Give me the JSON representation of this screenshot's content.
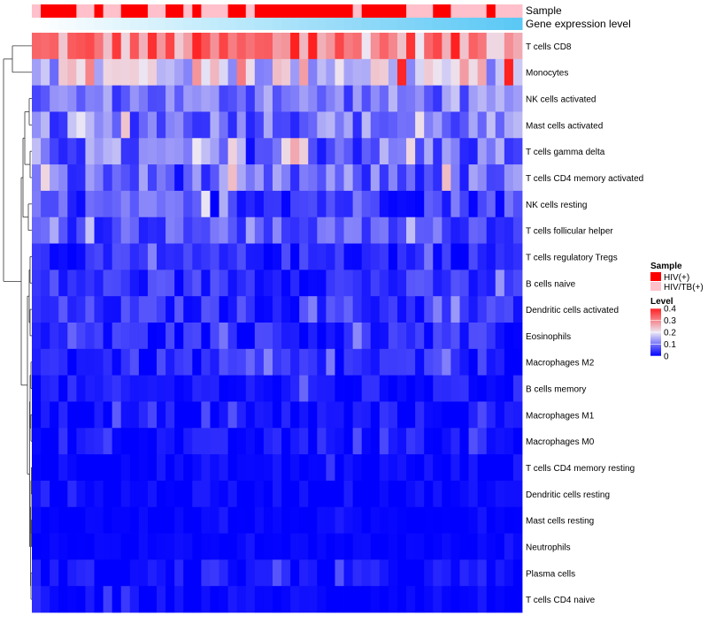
{
  "chart_data": {
    "type": "heatmap",
    "annotation_tracks": {
      "sample_label": "Sample",
      "gene_expression_label": "Gene expression level"
    },
    "sample_groups": [
      {
        "name": "HIV(+)",
        "color": "#ff0000"
      },
      {
        "name": "HIV/TB(+)",
        "color": "#ffc0cb"
      }
    ],
    "sample_annotation": [
      1,
      0,
      0,
      0,
      0,
      1,
      1,
      0,
      1,
      1,
      0,
      0,
      0,
      1,
      1,
      0,
      0,
      1,
      0,
      1,
      1,
      1,
      0,
      0,
      1,
      0,
      0,
      0,
      0,
      0,
      0,
      0,
      0,
      0,
      0,
      0,
      1,
      0,
      0,
      0,
      0,
      0,
      1,
      1,
      1,
      0,
      0,
      1,
      1,
      1,
      1,
      0,
      1,
      1,
      1
    ],
    "gene_expression_gradient": [
      "#ffffff",
      "#5bc8f5"
    ],
    "row_labels": [
      "T cells CD8",
      "Monocytes",
      "NK cells activated",
      "Mast cells activated",
      "T cells gamma delta",
      "T cells CD4 memory activated",
      "NK cells resting",
      "T cells follicular helper",
      "T cells regulatory  Tregs",
      "B cells naive",
      "Dendritic cells activated",
      "Eosinophils",
      "Macrophages M2",
      "B cells memory",
      "Macrophages M1",
      "Macrophages M0",
      "T cells CD4 memory resting",
      "Dendritic cells resting",
      "Mast cells resting",
      "Neutrophils",
      "Plasma cells",
      "T cells CD4 naive"
    ],
    "n_columns": 55,
    "row_profiles": [
      {
        "base": 0.3,
        "spread": 0.1
      },
      {
        "base": 0.19,
        "spread": 0.1
      },
      {
        "base": 0.1,
        "spread": 0.06
      },
      {
        "base": 0.1,
        "spread": 0.07
      },
      {
        "base": 0.09,
        "spread": 0.08
      },
      {
        "base": 0.08,
        "spread": 0.07
      },
      {
        "base": 0.06,
        "spread": 0.06
      },
      {
        "base": 0.07,
        "spread": 0.05
      },
      {
        "base": 0.03,
        "spread": 0.04
      },
      {
        "base": 0.04,
        "spread": 0.04
      },
      {
        "base": 0.04,
        "spread": 0.04
      },
      {
        "base": 0.03,
        "spread": 0.04
      },
      {
        "base": 0.03,
        "spread": 0.04
      },
      {
        "base": 0.015,
        "spread": 0.03
      },
      {
        "base": 0.01,
        "spread": 0.03
      },
      {
        "base": 0.01,
        "spread": 0.03
      },
      {
        "base": 0.005,
        "spread": 0.02
      },
      {
        "base": 0.005,
        "spread": 0.02
      },
      {
        "base": 0.003,
        "spread": 0.01
      },
      {
        "base": 0.003,
        "spread": 0.01
      },
      {
        "base": 0.01,
        "spread": 0.03
      },
      {
        "base": 0.005,
        "spread": 0.02
      }
    ],
    "color_scale": {
      "min": 0,
      "max": 0.4,
      "stops": [
        {
          "value": 0,
          "color": "#0000ff"
        },
        {
          "value": 0.2,
          "color": "#ece8f4"
        },
        {
          "value": 0.4,
          "color": "#ff2020"
        }
      ]
    },
    "legend": {
      "sample_title": "Sample",
      "sample_entries": [
        "HIV(+)",
        "HIV/TB(+)"
      ],
      "level_title": "Level",
      "level_ticks": [
        "0.4",
        "0.3",
        "0.2",
        "0.1",
        "0"
      ]
    },
    "dendrogram": "row clustering tree on the left"
  }
}
